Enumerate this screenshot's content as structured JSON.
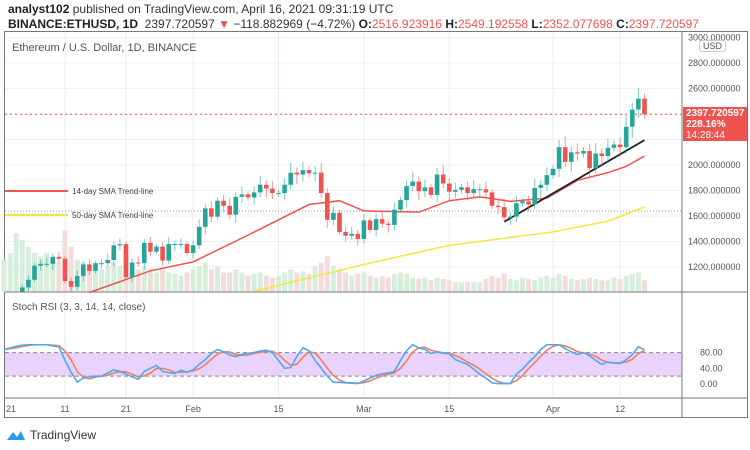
{
  "header": {
    "author": "analyst102",
    "published": "published on TradingView.com, April 16, 2021 09:31:19 UTC",
    "symbol": "BINANCE:ETHUSD, 1D",
    "last": "2397.720597",
    "change": "−118.882969 (−4.72%)",
    "o_label": "O:",
    "o": "2516.923916",
    "h_label": "H:",
    "h": "2549.192558",
    "l_label": "L:",
    "l": "2352.077698",
    "c_label": "C:",
    "c": "2397.720597"
  },
  "chart": {
    "legend": "Ethereum / U.S. Dollar, 1D, BINANCE",
    "currency": "USD",
    "price_label": {
      "price": "2397.720597",
      "pct": "228.16%",
      "countdown": "14:28:44"
    },
    "price_ticks": [
      "3000.000000",
      "2800.000000",
      "2600.000000",
      "2000.000000",
      "1800.000000",
      "1600.000000",
      "1400.000000",
      "1200.000000"
    ],
    "sma14_label": "14-day SMA Trend-line",
    "sma50_label": "50-day SMA Trend-line",
    "time_ticks": [
      "21",
      "11",
      "21",
      "Feb",
      "15",
      "Mar",
      "15",
      "Apr",
      "12"
    ],
    "colors": {
      "up": "#26a69a",
      "down": "#ef5350",
      "sma14": "#f05350",
      "sma50": "#f5e63a",
      "trend": "#222222",
      "stoch_k": "#4fa8f5",
      "stoch_d": "#f0805a",
      "band": "#e3c8fc"
    }
  },
  "chart_data": {
    "type": "candlestick",
    "start_date": "2021-01-01",
    "closes": [
      730,
      775,
      975,
      1040,
      1100,
      1210,
      1225,
      1225,
      1280,
      1265,
      1090,
      1045,
      1130,
      1220,
      1170,
      1230,
      1230,
      1255,
      1370,
      1380,
      1120,
      1235,
      1230,
      1390,
      1320,
      1360,
      1250,
      1380,
      1380,
      1380,
      1310,
      1370,
      1515,
      1660,
      1595,
      1720,
      1680,
      1610,
      1750,
      1770,
      1745,
      1785,
      1845,
      1815,
      1780,
      1780,
      1845,
      1940,
      1925,
      1960,
      1935,
      1940,
      1780,
      1570,
      1625,
      1475,
      1445,
      1460,
      1420,
      1565,
      1490,
      1575,
      1540,
      1530,
      1650,
      1725,
      1835,
      1870,
      1795,
      1825,
      1765,
      1925,
      1855,
      1790,
      1805,
      1825,
      1780,
      1810,
      1810,
      1785,
      1680,
      1670,
      1590,
      1595,
      1700,
      1715,
      1690,
      1820,
      1845,
      1920,
      1970,
      2140,
      2025,
      2100,
      2090,
      2110,
      1975,
      2090,
      2070,
      2135,
      2160,
      2140,
      2300,
      2435,
      2520,
      2398
    ],
    "volume_relative": [
      50,
      60,
      90,
      80,
      70,
      60,
      55,
      60,
      50,
      45,
      95,
      70,
      50,
      45,
      40,
      35,
      35,
      40,
      45,
      40,
      55,
      40,
      35,
      40,
      35,
      30,
      35,
      30,
      28,
      25,
      30,
      35,
      40,
      45,
      35,
      40,
      30,
      30,
      35,
      30,
      25,
      28,
      30,
      25,
      22,
      25,
      30,
      35,
      30,
      32,
      28,
      40,
      45,
      55,
      40,
      35,
      30,
      25,
      28,
      30,
      25,
      22,
      25,
      22,
      28,
      30,
      28,
      22,
      20,
      22,
      18,
      22,
      20,
      18,
      15,
      15,
      15,
      15,
      15,
      20,
      25,
      22,
      28,
      20,
      18,
      22,
      20,
      18,
      22,
      25,
      22,
      28,
      25,
      20,
      18,
      20,
      22,
      20,
      18,
      18,
      22,
      20,
      25,
      28,
      30,
      18
    ],
    "sma14": [
      [
        "2021-01-15",
        1000
      ],
      [
        "2021-01-25",
        1170
      ],
      [
        "2021-02-01",
        1240
      ],
      [
        "2021-02-10",
        1450
      ],
      [
        "2021-02-20",
        1690
      ],
      [
        "2021-02-25",
        1720
      ],
      [
        "2021-03-01",
        1640
      ],
      [
        "2021-03-10",
        1630
      ],
      [
        "2021-03-15",
        1720
      ],
      [
        "2021-03-20",
        1750
      ],
      [
        "2021-03-25",
        1715
      ],
      [
        "2021-03-31",
        1740
      ],
      [
        "2021-04-05",
        1880
      ],
      [
        "2021-04-10",
        1940
      ],
      [
        "2021-04-13",
        1990
      ],
      [
        "2021-04-16",
        2070
      ]
    ],
    "sma50": [
      [
        "2021-02-11",
        1010
      ],
      [
        "2021-03-01",
        1220
      ],
      [
        "2021-03-15",
        1370
      ],
      [
        "2021-04-01",
        1475
      ],
      [
        "2021-04-10",
        1560
      ],
      [
        "2021-04-16",
        1670
      ]
    ],
    "trendline": [
      [
        "2021-03-24",
        1555
      ],
      [
        "2021-04-16",
        2195
      ]
    ],
    "ylim": [
      1010,
      3000
    ],
    "stoch_rsi": {
      "title": "Stoch RSI (3, 3, 14, 14, close)",
      "ticks": [
        "80.00",
        "40.00",
        "0.00"
      ],
      "band": [
        20,
        80
      ],
      "k": [
        88,
        92,
        96,
        99,
        100,
        100,
        100,
        100,
        97,
        95,
        60,
        30,
        5,
        15,
        19,
        20,
        20,
        28,
        36,
        32,
        25,
        18,
        12,
        32,
        40,
        47,
        32,
        29,
        27,
        35,
        30,
        36,
        50,
        62,
        78,
        88,
        82,
        74,
        70,
        75,
        78,
        80,
        84,
        86,
        80,
        60,
        40,
        42,
        70,
        92,
        85,
        60,
        40,
        20,
        5,
        4,
        3,
        2,
        1,
        8,
        15,
        22,
        26,
        28,
        32,
        60,
        85,
        100,
        92,
        88,
        78,
        82,
        78,
        77,
        62,
        56,
        50,
        38,
        25,
        15,
        3,
        1,
        1,
        1,
        25,
        38,
        55,
        70,
        88,
        100,
        100,
        100,
        90,
        82,
        75,
        80,
        72,
        60,
        50,
        56,
        54,
        52,
        62,
        75,
        95,
        87
      ]
    }
  },
  "footer": {
    "brand": "TradingView"
  }
}
